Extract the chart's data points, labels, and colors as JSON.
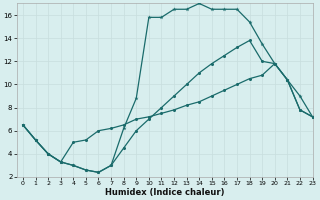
{
  "xlabel": "Humidex (Indice chaleur)",
  "bg_color": "#d8eeee",
  "grid_color": "#c8dede",
  "line_color": "#1a6b6b",
  "xlim": [
    -0.5,
    23
  ],
  "ylim": [
    2,
    17
  ],
  "yticks": [
    2,
    4,
    6,
    8,
    10,
    12,
    14,
    16
  ],
  "xticks": [
    0,
    1,
    2,
    3,
    4,
    5,
    6,
    7,
    8,
    9,
    10,
    11,
    12,
    13,
    14,
    15,
    16,
    17,
    18,
    19,
    20,
    21,
    22,
    23
  ],
  "x": [
    0,
    1,
    2,
    3,
    4,
    5,
    6,
    7,
    8,
    9,
    10,
    11,
    12,
    13,
    14,
    15,
    16,
    17,
    18,
    19,
    20,
    21,
    22,
    23
  ],
  "y_upper": [
    6.5,
    5.2,
    4.0,
    3.3,
    3.0,
    2.6,
    2.4,
    3.0,
    6.2,
    8.8,
    15.8,
    15.8,
    16.5,
    16.5,
    17.0,
    16.5,
    16.5,
    16.5,
    15.4,
    13.5,
    11.8,
    10.4,
    9.0,
    7.2
  ],
  "y_mid": [
    6.5,
    5.2,
    4.0,
    3.3,
    3.0,
    2.6,
    2.4,
    3.0,
    4.5,
    6.0,
    7.0,
    8.0,
    9.0,
    10.0,
    11.0,
    11.8,
    12.5,
    13.2,
    13.8,
    12.0,
    11.8,
    10.4,
    7.8,
    7.2
  ],
  "y_lower": [
    6.5,
    5.2,
    4.0,
    3.3,
    5.0,
    5.2,
    6.0,
    6.2,
    6.5,
    7.0,
    7.2,
    7.5,
    7.8,
    8.2,
    8.5,
    9.0,
    9.5,
    10.0,
    10.5,
    10.8,
    11.8,
    10.4,
    7.8,
    7.2
  ]
}
